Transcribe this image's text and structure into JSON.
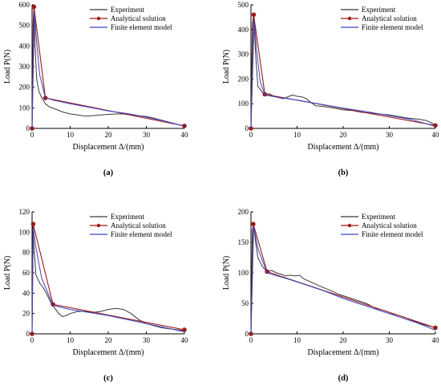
{
  "colors": {
    "experiment": "#3a3a3a",
    "analytical": "#a01818",
    "fem": "#3a44c8",
    "axis": "#000000"
  },
  "legend": {
    "experiment": "Experiment",
    "analytical": "Analytical solution",
    "fem": "Finite element model"
  },
  "chart_data": [
    {
      "type": "line",
      "panel_label": "(a)",
      "xlabel": "Displacement Δ/(mm)",
      "ylabel": "Load P(N)",
      "xlim": [
        0,
        40
      ],
      "ylim": [
        0,
        600
      ],
      "xticks": [
        0,
        10,
        20,
        30,
        40
      ],
      "yticks": [
        0,
        100,
        200,
        300,
        400,
        500,
        600
      ],
      "legend_position": "top-right",
      "series": [
        {
          "name": "Experiment",
          "role": "experiment",
          "x": [
            0,
            0.3,
            0.5,
            0.8,
            1.2,
            1.8,
            2.5,
            3.5,
            4.5,
            6,
            8,
            10,
            12,
            14,
            16,
            18,
            20,
            22,
            24,
            26,
            28,
            30,
            32,
            34,
            36,
            38,
            40
          ],
          "y": [
            0,
            520,
            590,
            400,
            240,
            180,
            150,
            120,
            105,
            95,
            80,
            70,
            65,
            60,
            62,
            65,
            68,
            70,
            70,
            65,
            62,
            58,
            50,
            40,
            30,
            20,
            12
          ]
        },
        {
          "name": "Analytical solution",
          "role": "analytical",
          "markers": true,
          "x": [
            0,
            0.5,
            3.5,
            40
          ],
          "y": [
            0,
            590,
            148,
            12
          ]
        },
        {
          "name": "Finite element model",
          "role": "fem",
          "x": [
            0,
            0.6,
            1.2,
            2,
            3.5,
            6,
            10,
            15,
            20,
            25,
            30,
            35,
            40
          ],
          "y": [
            0,
            560,
            420,
            260,
            148,
            135,
            120,
            102,
            85,
            72,
            55,
            35,
            10
          ]
        }
      ]
    },
    {
      "type": "line",
      "panel_label": "(b)",
      "xlabel": "Displacement Δ/(mm)",
      "ylabel": "Load P(N)",
      "xlim": [
        0,
        40
      ],
      "ylim": [
        0,
        500
      ],
      "xticks": [
        0,
        10,
        20,
        30,
        40
      ],
      "yticks": [
        0,
        100,
        200,
        300,
        400,
        500
      ],
      "legend_position": "top-right",
      "series": [
        {
          "name": "Experiment",
          "role": "experiment",
          "x": [
            0,
            0.3,
            0.6,
            1,
            1.5,
            2.5,
            3,
            4,
            5,
            6,
            7,
            8,
            9,
            10,
            11,
            12,
            13,
            14,
            16,
            18,
            20,
            22,
            24,
            26,
            28,
            30,
            32,
            34,
            36,
            38,
            40
          ],
          "y": [
            0,
            420,
            460,
            300,
            170,
            145,
            138,
            140,
            130,
            125,
            120,
            128,
            135,
            130,
            128,
            120,
            105,
            92,
            88,
            82,
            75,
            72,
            65,
            62,
            58,
            55,
            48,
            42,
            38,
            32,
            15
          ]
        },
        {
          "name": "Analytical solution",
          "role": "analytical",
          "markers": true,
          "x": [
            0,
            0.6,
            3,
            40
          ],
          "y": [
            0,
            460,
            138,
            12
          ]
        },
        {
          "name": "Finite element model",
          "role": "fem",
          "x": [
            0,
            0.7,
            1.2,
            2,
            3,
            6,
            10,
            15,
            20,
            25,
            30,
            35,
            40
          ],
          "y": [
            0,
            440,
            320,
            190,
            135,
            125,
            115,
            98,
            82,
            68,
            52,
            35,
            8
          ]
        }
      ]
    },
    {
      "type": "line",
      "panel_label": "(c)",
      "xlabel": "Displacement Δ/(mm)",
      "ylabel": "Load P(N)",
      "xlim": [
        0,
        40
      ],
      "ylim": [
        0,
        120
      ],
      "xticks": [
        0,
        10,
        20,
        30,
        40
      ],
      "yticks": [
        0,
        20,
        40,
        60,
        80,
        100,
        120
      ],
      "legend_position": "top-right",
      "series": [
        {
          "name": "Experiment",
          "role": "experiment",
          "x": [
            0,
            0.2,
            0.5,
            1,
            2,
            3,
            4,
            5,
            6,
            7,
            8,
            9,
            10,
            12,
            14,
            16,
            18,
            20,
            22,
            24,
            26,
            28,
            30,
            32,
            34,
            36,
            38,
            40
          ],
          "y": [
            0,
            108,
            85,
            58,
            50,
            45,
            38,
            30,
            25,
            20,
            17,
            18,
            20,
            22,
            22,
            21,
            22,
            24,
            25,
            24,
            20,
            14,
            10,
            8,
            6,
            5,
            4,
            3
          ]
        },
        {
          "name": "Analytical solution",
          "role": "analytical",
          "markers": true,
          "x": [
            0,
            0.3,
            5.5,
            40
          ],
          "y": [
            0,
            108,
            29,
            4
          ]
        },
        {
          "name": "Finite element model",
          "role": "fem",
          "x": [
            0,
            0.3,
            1,
            2.5,
            5.5,
            10,
            15,
            20,
            25,
            30,
            35,
            40
          ],
          "y": [
            0,
            104,
            85,
            55,
            28,
            24,
            21,
            18,
            14,
            10,
            6,
            2
          ]
        }
      ]
    },
    {
      "type": "line",
      "panel_label": "(d)",
      "xlabel": "Displacement Δ/(mm)",
      "ylabel": "Load P(N)",
      "xlim": [
        0,
        40
      ],
      "ylim": [
        0,
        200
      ],
      "xticks": [
        0,
        10,
        20,
        30,
        40
      ],
      "yticks": [
        0,
        50,
        100,
        150,
        200
      ],
      "legend_position": "top-right",
      "series": [
        {
          "name": "Experiment",
          "role": "experiment",
          "x": [
            0,
            0.3,
            0.6,
            1,
            1.5,
            2.5,
            3.5,
            4.5,
            5.5,
            6.5,
            7.5,
            8.5,
            9.5,
            10.5,
            11.5,
            13,
            15,
            17,
            19,
            21,
            23,
            25,
            27,
            29,
            31,
            33,
            35,
            37,
            39,
            40
          ],
          "y": [
            0,
            170,
            180,
            150,
            125,
            110,
            102,
            104,
            100,
            98,
            95,
            96,
            95,
            96,
            90,
            85,
            78,
            72,
            65,
            60,
            55,
            50,
            42,
            38,
            32,
            28,
            22,
            16,
            12,
            10
          ]
        },
        {
          "name": "Analytical solution",
          "role": "analytical",
          "markers": true,
          "x": [
            0,
            0.5,
            3.5,
            40
          ],
          "y": [
            0,
            180,
            102,
            10
          ]
        },
        {
          "name": "Finite element model",
          "role": "fem",
          "x": [
            0,
            0.6,
            1.5,
            3.5,
            8,
            12,
            16,
            20,
            24,
            28,
            32,
            36,
            40
          ],
          "y": [
            0,
            176,
            140,
            100,
            90,
            80,
            70,
            58,
            48,
            38,
            28,
            18,
            6
          ]
        }
      ]
    }
  ]
}
